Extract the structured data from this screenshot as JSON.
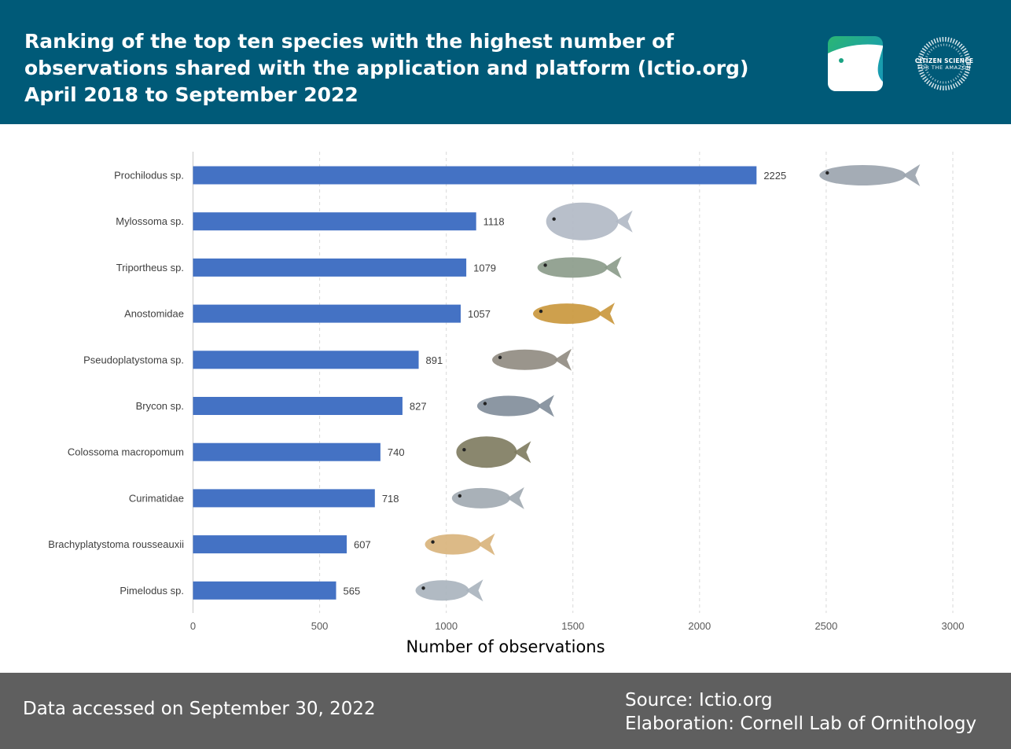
{
  "header": {
    "title": "Ranking of the top ten species with the highest number of observations shared with the application and platform (Ictio.org) April 2018 to September 2022",
    "logo_citizen_science_line1": "CITIZEN SCIENCE",
    "logo_citizen_science_line2": "FOR THE AMAZON"
  },
  "chart_data": {
    "type": "bar",
    "orientation": "horizontal",
    "categories": [
      "Prochilodus sp.",
      "Mylossoma sp.",
      "Triportheus sp.",
      "Anostomidae",
      "Pseudoplatystoma sp.",
      "Brycon sp.",
      "Colossoma macropomum",
      "Curimatidae",
      "Brachyplatystoma rousseauxii",
      "Pimelodus sp."
    ],
    "values": [
      2225,
      1118,
      1079,
      1057,
      891,
      827,
      740,
      718,
      607,
      565
    ],
    "xlabel": "Number of observations",
    "xlim": [
      0,
      3000
    ],
    "xticks": [
      0,
      500,
      1000,
      1500,
      2000,
      2500,
      3000
    ],
    "grid": "vertical dashed",
    "bar_color": "#4472c4",
    "data_labels": true
  },
  "footer": {
    "accessed": "Data accessed on September 30, 2022",
    "source": "Source: Ictio.org",
    "elaboration": "Elaboration: Cornell Lab of Ornithology"
  },
  "colors": {
    "header_bg": "#005a78",
    "footer_bg": "#5f5f5f",
    "bar": "#4472c4"
  }
}
